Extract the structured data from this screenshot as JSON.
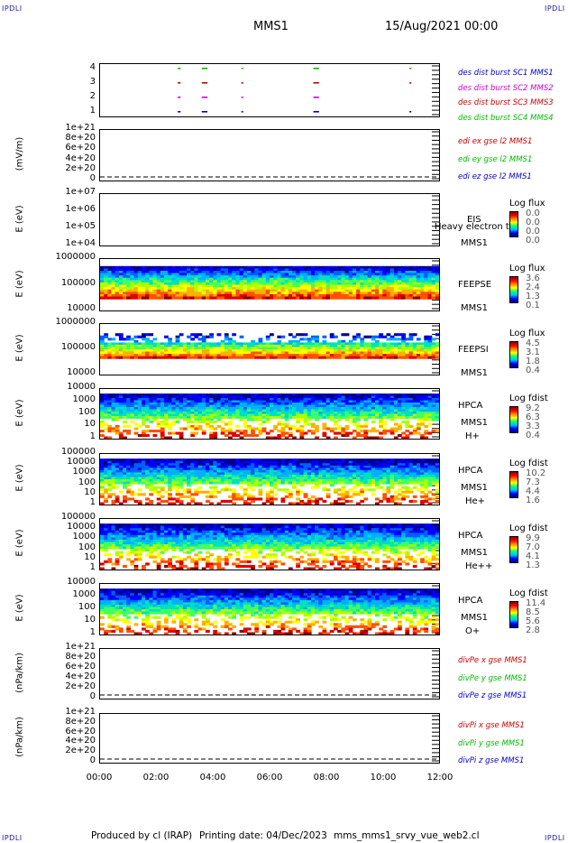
{
  "corners": {
    "label": "IPDLI"
  },
  "header": {
    "spacecraft": "MMS1",
    "datetime": "15/Aug/2021 00:00"
  },
  "footer": {
    "produced_by": "Produced by cl (IRAP)",
    "printing_date": "Printing date: 04/Dec/2023",
    "filename": "mms_mms1_srvy_vue_web2.cl"
  },
  "x_axis": {
    "ticks": [
      "00:00",
      "02:00",
      "04:00",
      "06:00",
      "08:00",
      "10:00",
      "12:00"
    ],
    "range_hours": [
      0,
      12
    ]
  },
  "colors": {
    "red": "#cc0000",
    "magenta": "#cc00cc",
    "green": "#00bb00",
    "blue": "#0000cc"
  },
  "chart_data": [
    {
      "type": "scatter",
      "id": "burst",
      "yticks": [
        "4",
        "3",
        "2",
        "1"
      ],
      "legend": [
        {
          "name": "des dist burst SC1 MMS1",
          "color": "#0000cc"
        },
        {
          "name": "des dist burst SC2 MMS2",
          "color": "#cc00cc"
        },
        {
          "name": "des dist burst SC3 MMS3",
          "color": "#cc0000"
        },
        {
          "name": "des dist burst SC4 MMS4",
          "color": "#00bb00"
        }
      ],
      "segments_hours": [
        [
          2.75,
          2.85
        ],
        [
          3.6,
          3.8
        ],
        [
          5.0,
          5.05
        ],
        [
          7.55,
          7.75
        ],
        [
          10.95,
          11.0
        ]
      ]
    },
    {
      "type": "line",
      "id": "edi",
      "ylabel": "(mV/m)",
      "yticks": [
        "1e+21",
        "8e+20",
        "6e+20",
        "4e+20",
        "2e+20",
        "0"
      ],
      "legend": [
        {
          "name": "edi ex gse l2 MMS1",
          "color": "#cc0000"
        },
        {
          "name": "edi ey gse l2 MMS1",
          "color": "#00bb00"
        },
        {
          "name": "edi ez gse l2 MMS1",
          "color": "#0000cc"
        }
      ]
    },
    {
      "type": "heatmap",
      "id": "eis",
      "ylabel": "E (eV)",
      "yticks": [
        "1e+07",
        "1e+06",
        "1e+05",
        "1e+04"
      ],
      "instrument": "EIS",
      "sc": "MMS1",
      "species": "Heavy electron to",
      "cbar_title": "Log flux",
      "cbar_ticks": [
        "0.0",
        "0.0",
        "0.0",
        "0.0"
      ]
    },
    {
      "type": "heatmap",
      "id": "feepse",
      "ylabel": "E (eV)",
      "yticks": [
        "1000000",
        "100000",
        "10000"
      ],
      "instrument": "FEEPSE",
      "sc": "MMS1",
      "cbar_title": "Log flux",
      "cbar_ticks": [
        "3.6",
        "2.4",
        "1.3",
        "0.1"
      ]
    },
    {
      "type": "heatmap",
      "id": "feepsi",
      "ylabel": "E (eV)",
      "yticks": [
        "1000000",
        "100000",
        "10000"
      ],
      "instrument": "FEEPSI",
      "sc": "MMS1",
      "cbar_title": "Log flux",
      "cbar_ticks": [
        "4.5",
        "3.1",
        "1.8",
        "0.4"
      ]
    },
    {
      "type": "heatmap",
      "id": "hpca_h",
      "ylabel": "E (eV)",
      "yticks": [
        "10000",
        "1000",
        "100",
        "10",
        "1"
      ],
      "instrument": "HPCA",
      "sc": "MMS1",
      "species": "H+",
      "cbar_title": "Log fdist",
      "cbar_ticks": [
        "9.2",
        "6.3",
        "3.3",
        "0.4"
      ]
    },
    {
      "type": "heatmap",
      "id": "hpca_he",
      "ylabel": "E (eV)",
      "yticks": [
        "100000",
        "10000",
        "1000",
        "100",
        "10",
        "1"
      ],
      "instrument": "HPCA",
      "sc": "MMS1",
      "species": "He+",
      "cbar_title": "Log fdist",
      "cbar_ticks": [
        "10.2",
        "7.3",
        "4.4",
        "1.6"
      ]
    },
    {
      "type": "heatmap",
      "id": "hpca_hepp",
      "ylabel": "E (eV)",
      "yticks": [
        "100000",
        "10000",
        "1000",
        "100",
        "10",
        "1"
      ],
      "instrument": "HPCA",
      "sc": "MMS1",
      "species": "He++",
      "cbar_title": "Log fdist",
      "cbar_ticks": [
        "9.9",
        "7.0",
        "4.1",
        "1.3"
      ]
    },
    {
      "type": "heatmap",
      "id": "hpca_o",
      "ylabel": "E (eV)",
      "yticks": [
        "10000",
        "1000",
        "100",
        "10",
        "1"
      ],
      "instrument": "HPCA",
      "sc": "MMS1",
      "species": "O+",
      "cbar_title": "Log fdist",
      "cbar_ticks": [
        "11.4",
        "8.5",
        "5.6",
        "2.8"
      ]
    },
    {
      "type": "line",
      "id": "divpe",
      "ylabel": "(nPa/km)",
      "yticks": [
        "1e+21",
        "8e+20",
        "6e+20",
        "4e+20",
        "2e+20",
        "0"
      ],
      "legend": [
        {
          "name": "divPe x gse MMS1",
          "color": "#cc0000"
        },
        {
          "name": "divPe y gse MMS1",
          "color": "#00bb00"
        },
        {
          "name": "divPe z gse MMS1",
          "color": "#0000cc"
        }
      ]
    },
    {
      "type": "line",
      "id": "divpi",
      "ylabel": "(nPa/km)",
      "yticks": [
        "1e+21",
        "8e+20",
        "6e+20",
        "4e+20",
        "2e+20",
        "0"
      ],
      "legend": [
        {
          "name": "divPi x gse MMS1",
          "color": "#cc0000"
        },
        {
          "name": "divPi y gse MMS1",
          "color": "#00bb00"
        },
        {
          "name": "divPi z gse MMS1",
          "color": "#0000cc"
        }
      ]
    }
  ]
}
